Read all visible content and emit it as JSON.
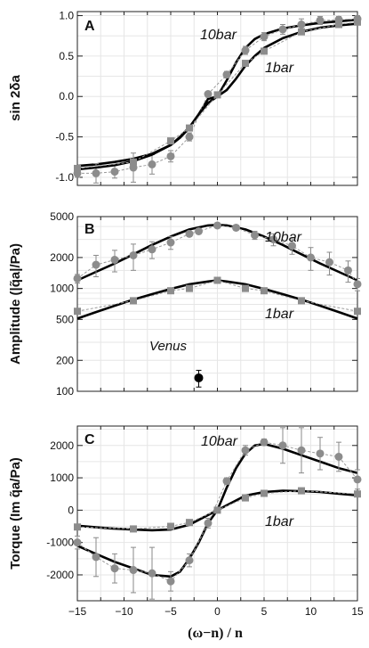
{
  "chart_data": [
    {
      "panel": "A",
      "type": "line",
      "ylabel": "sin 2δa",
      "xlim": [
        -15,
        15
      ],
      "ylim": [
        -1.1,
        1.05
      ],
      "yscale": "linear",
      "yticks": [
        -1.0,
        -0.5,
        0.0,
        0.5,
        1.0
      ],
      "ytick_labels": [
        "-1.0",
        "-0.5",
        "0.0",
        "0.5",
        "1.0"
      ],
      "grid": true,
      "series": [
        {
          "name": "10bar",
          "model_x": [
            -15,
            -13,
            -11,
            -9,
            -7,
            -5,
            -4,
            -3,
            -2,
            -1,
            0,
            1,
            2,
            3,
            4,
            5,
            7,
            9,
            11,
            13,
            15
          ],
          "model_y": [
            -0.86,
            -0.84,
            -0.81,
            -0.77,
            -0.71,
            -0.6,
            -0.51,
            -0.39,
            -0.22,
            -0.03,
            0.0,
            0.2,
            0.42,
            0.6,
            0.71,
            0.77,
            0.84,
            0.88,
            0.91,
            0.93,
            0.95
          ],
          "x": [
            -15,
            -13,
            -11,
            -9,
            -7,
            -5,
            -3,
            -1,
            1,
            3,
            5,
            7,
            9,
            11,
            13,
            15
          ],
          "y": [
            -0.95,
            -0.95,
            -0.93,
            -0.88,
            -0.84,
            -0.74,
            -0.5,
            0.03,
            0.27,
            0.57,
            0.74,
            0.83,
            0.89,
            0.94,
            0.95,
            0.96
          ],
          "err": [
            0.05,
            0.12,
            0.08,
            0.18,
            0.12,
            0.07,
            0.05,
            0.02,
            0.04,
            0.05,
            0.05,
            0.06,
            0.07,
            0.05,
            0.04,
            0.04
          ]
        },
        {
          "name": "1bar",
          "model_x": [
            -15,
            -13,
            -11,
            -9,
            -7,
            -5,
            -4,
            -3,
            -2,
            -1,
            0,
            1,
            2,
            3,
            4,
            5,
            7,
            9,
            11,
            13,
            15
          ],
          "model_y": [
            -0.9,
            -0.88,
            -0.85,
            -0.8,
            -0.72,
            -0.6,
            -0.5,
            -0.38,
            -0.22,
            -0.08,
            0.0,
            0.08,
            0.22,
            0.38,
            0.5,
            0.6,
            0.72,
            0.8,
            0.85,
            0.88,
            0.9
          ],
          "x": [
            -15,
            -9,
            -5,
            -3,
            0,
            3,
            5,
            9,
            13,
            15
          ],
          "y": [
            -0.89,
            -0.81,
            -0.55,
            -0.39,
            0.02,
            0.41,
            0.56,
            0.8,
            0.89,
            0.92
          ],
          "err": [
            0.03,
            0.03,
            0.03,
            0.03,
            0.02,
            0.03,
            0.03,
            0.03,
            0.03,
            0.03
          ]
        }
      ],
      "annotations": [
        "10bar",
        "1bar"
      ]
    },
    {
      "panel": "B",
      "type": "line",
      "ylabel": "Amplitude (|q̃a|/Pa)",
      "xlim": [
        -15,
        15
      ],
      "ylim": [
        100,
        5000
      ],
      "yscale": "log",
      "yticks": [
        100,
        200,
        500,
        1000,
        2000,
        5000
      ],
      "ytick_labels": [
        "100",
        "200",
        "500",
        "1000",
        "2000",
        "5000"
      ],
      "grid": true,
      "series": [
        {
          "name": "10bar",
          "model_x": [
            -15,
            -13,
            -11,
            -9,
            -7,
            -5,
            -3,
            -1,
            0,
            1,
            3,
            5,
            7,
            9,
            11,
            13,
            15
          ],
          "model_y": [
            1200,
            1450,
            1750,
            2150,
            2650,
            3200,
            3750,
            4100,
            4150,
            4100,
            3750,
            3200,
            2650,
            2150,
            1750,
            1450,
            1200
          ],
          "x": [
            -15,
            -13,
            -11,
            -9,
            -7,
            -5,
            -3,
            -2,
            0,
            2,
            4,
            6,
            8,
            10,
            12,
            14,
            15
          ],
          "y": [
            1250,
            1700,
            1900,
            2100,
            2400,
            2800,
            3400,
            3600,
            4100,
            3900,
            3300,
            3000,
            2600,
            2000,
            1800,
            1500,
            1100
          ],
          "err": [
            120,
            400,
            450,
            600,
            450,
            400,
            200,
            150,
            80,
            150,
            300,
            400,
            450,
            500,
            450,
            350,
            150
          ]
        },
        {
          "name": "1bar",
          "model_x": [
            -15,
            -13,
            -11,
            -9,
            -7,
            -5,
            -3,
            -1,
            0,
            1,
            3,
            5,
            7,
            9,
            11,
            13,
            15
          ],
          "model_y": [
            510,
            590,
            680,
            780,
            880,
            990,
            1100,
            1170,
            1200,
            1170,
            1100,
            990,
            880,
            780,
            680,
            590,
            510
          ],
          "x": [
            -15,
            -9,
            -5,
            -3,
            0,
            3,
            5,
            9,
            15
          ],
          "y": [
            600,
            760,
            950,
            1000,
            1200,
            1000,
            950,
            760,
            600
          ],
          "err": [
            30,
            30,
            30,
            30,
            30,
            30,
            30,
            30,
            30
          ]
        },
        {
          "name": "Venus",
          "x": [
            -2
          ],
          "y": [
            135
          ],
          "err": [
            25
          ]
        }
      ],
      "annotations": [
        "10bar",
        "1bar",
        "Venus"
      ]
    },
    {
      "panel": "C",
      "type": "line",
      "ylabel": "Torque (Im q̃a/Pa)",
      "xlabel": "(ω−n) / n",
      "xlim": [
        -15,
        15
      ],
      "ylim": [
        -2800,
        2600
      ],
      "yscale": "linear",
      "yticks": [
        -2000,
        -1000,
        0,
        1000,
        2000
      ],
      "ytick_labels": [
        "-2000",
        "-1000",
        "0",
        "1000",
        "2000"
      ],
      "xticks": [
        -15,
        -10,
        -5,
        0,
        5,
        10,
        15
      ],
      "xtick_labels": [
        "−15",
        "−10",
        "−5",
        "0",
        "5",
        "10",
        "15"
      ],
      "grid": true,
      "series": [
        {
          "name": "10bar",
          "model_x": [
            -15,
            -13,
            -11,
            -9,
            -7,
            -5,
            -4,
            -3,
            -2,
            -1,
            0,
            1,
            2,
            3,
            4,
            5,
            7,
            9,
            11,
            13,
            15
          ],
          "model_y": [
            -1100,
            -1350,
            -1600,
            -1800,
            -2000,
            -2050,
            -1900,
            -1500,
            -1000,
            -400,
            0,
            700,
            1300,
            1750,
            2000,
            2050,
            1900,
            1700,
            1500,
            1300,
            1150
          ],
          "x": [
            -15,
            -13,
            -11,
            -9,
            -7,
            -5,
            -3,
            -1,
            1,
            3,
            5,
            7,
            9,
            11,
            13,
            15
          ],
          "y": [
            -1000,
            -1450,
            -1800,
            -1850,
            -1950,
            -2200,
            -1550,
            -400,
            900,
            1850,
            2100,
            2000,
            1850,
            1750,
            1650,
            950
          ],
          "err": [
            200,
            600,
            450,
            700,
            800,
            300,
            200,
            150,
            100,
            150,
            100,
            550,
            700,
            500,
            450,
            300
          ]
        },
        {
          "name": "1bar",
          "model_x": [
            -15,
            -13,
            -11,
            -9,
            -7,
            -5,
            -3,
            -1,
            0,
            1,
            3,
            5,
            7,
            9,
            11,
            13,
            15
          ],
          "model_y": [
            -480,
            -530,
            -570,
            -600,
            -620,
            -600,
            -450,
            -150,
            0,
            150,
            450,
            560,
            600,
            590,
            560,
            510,
            460
          ],
          "x": [
            -15,
            -9,
            -5,
            -3,
            0,
            3,
            5,
            9,
            15
          ],
          "y": [
            -520,
            -580,
            -500,
            -380,
            0,
            380,
            520,
            600,
            500
          ],
          "err": [
            40,
            40,
            40,
            40,
            40,
            40,
            40,
            40,
            40
          ]
        }
      ],
      "annotations": [
        "10bar",
        "1bar"
      ]
    }
  ]
}
